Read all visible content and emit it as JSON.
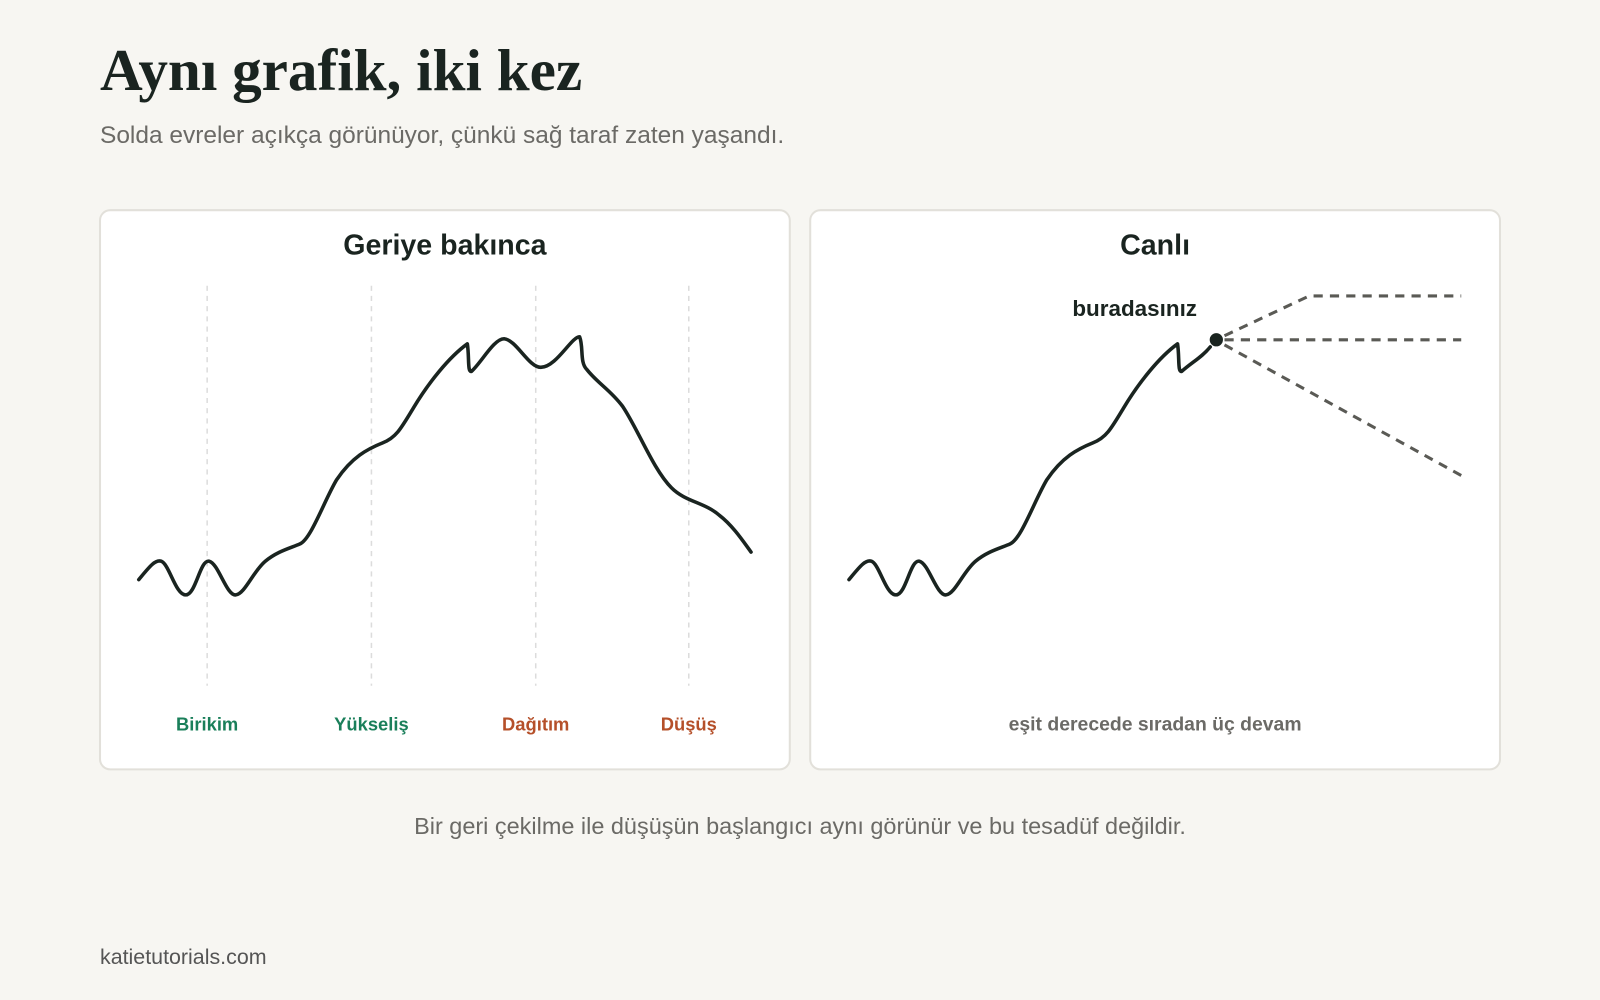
{
  "header": {
    "title": "Aynı grafik, iki kez",
    "subtitle": "Solda evreler açıkça görünüyor, çünkü sağ taraf zaten yaşandı."
  },
  "panels": [
    {
      "title": "Geriye bakınca",
      "phases": [
        "Birikim",
        "Yükseliş",
        "Dağıtım",
        "Düşüş"
      ]
    },
    {
      "title": "Canlı",
      "annotation": "buradasınız",
      "caption": "eşit derecede sıradan üç devam"
    }
  ],
  "footer": {
    "note": "Bir geri çekilme ile düşüşün başlangıcı aynı görünür ve bu tesadüf değildir.",
    "source": "katietutorials.com"
  }
}
